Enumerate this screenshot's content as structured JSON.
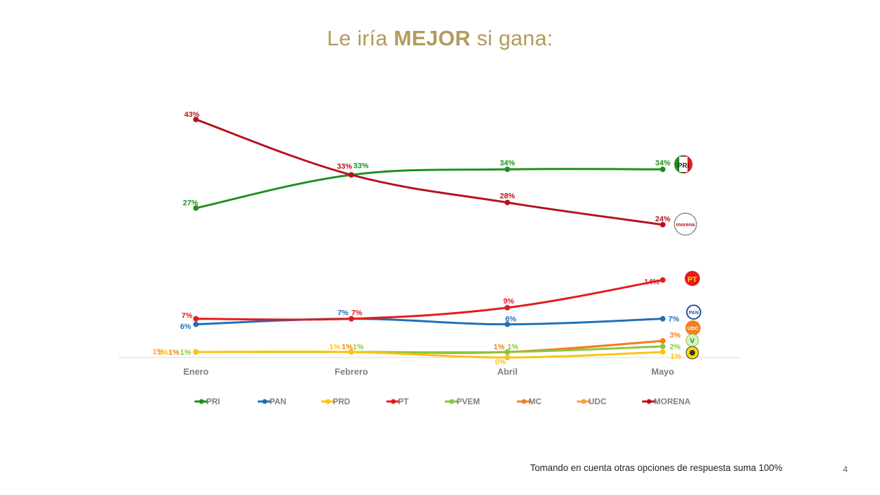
{
  "title": {
    "prefix": "Le iría",
    "emphasis": "MEJOR",
    "suffix": "si gana:"
  },
  "footnote": "Tomando en cuenta otras opciones de respuesta suma 100%",
  "page_number": "4",
  "colors": {
    "title": "#B39A5E",
    "axis_text": "#7F7F7F"
  },
  "party_logos": [
    {
      "party": "PRI",
      "icon": "pri-logo-icon",
      "text": "PRI"
    },
    {
      "party": "MORENA",
      "icon": "morena-logo-icon",
      "text": "morena"
    },
    {
      "party": "PT",
      "icon": "pt-logo-icon",
      "text": "PT"
    },
    {
      "party": "PAN",
      "icon": "pan-logo-icon",
      "text": "PAN"
    },
    {
      "party": "UDC",
      "icon": "udc-logo-icon",
      "text": "UDC"
    },
    {
      "party": "PVEM",
      "icon": "pvem-logo-icon",
      "text": "V"
    },
    {
      "party": "PRD",
      "icon": "prd-logo-icon",
      "text": "PRD"
    }
  ],
  "chart_data": {
    "type": "line",
    "title": "Le iría MEJOR si gana:",
    "xlabel": "",
    "ylabel": "",
    "categories": [
      "Enero",
      "Febrero",
      "Abril",
      "Mayo"
    ],
    "ylim": [
      0,
      50
    ],
    "grid": false,
    "legend_position": "bottom",
    "value_suffix": "%",
    "series": [
      {
        "name": "PRI",
        "color": "#1E8F1E",
        "values": [
          27,
          33,
          34,
          34
        ]
      },
      {
        "name": "PAN",
        "color": "#1F6FB8",
        "values": [
          6,
          7,
          6,
          7
        ]
      },
      {
        "name": "PRD",
        "color": "#FFC20E",
        "values": [
          1,
          1,
          0,
          1
        ]
      },
      {
        "name": "PT",
        "color": "#E41A1C",
        "values": [
          7,
          7,
          9,
          14
        ]
      },
      {
        "name": "PVEM",
        "color": "#8DC63F",
        "values": [
          1,
          1,
          1,
          2
        ]
      },
      {
        "name": "MC",
        "color": "#F07F1E",
        "values": [
          1,
          1,
          1,
          3
        ]
      },
      {
        "name": "UDC",
        "color": "#F4A040",
        "values": [
          1,
          1,
          1,
          3
        ]
      },
      {
        "name": "MORENA",
        "color": "#B5121B",
        "values": [
          43,
          33,
          28,
          24
        ]
      }
    ]
  }
}
